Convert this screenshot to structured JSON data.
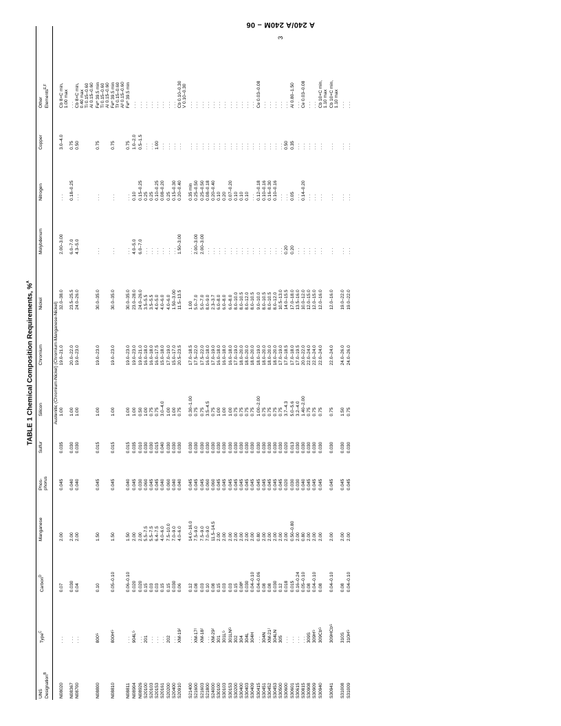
{
  "doc_header": "A 240/A 240M – 06",
  "page_number_rotated": "3",
  "title": "TABLE 1 Chemical Composition Requirements, %",
  "title_sup": "A",
  "columns": [
    {
      "key": "uns",
      "label": "UNS\nDesignation",
      "sup": "B"
    },
    {
      "key": "type",
      "label": "Type",
      "sup": "C"
    },
    {
      "key": "c",
      "label": "Carbon",
      "sup": "D"
    },
    {
      "key": "mn",
      "label": "Manganese",
      "sup": ""
    },
    {
      "key": "p",
      "label": "Phos-\nphorus",
      "sup": ""
    },
    {
      "key": "s",
      "label": "Sulfur",
      "sup": ""
    },
    {
      "key": "si",
      "label": "Silicon",
      "sup": ""
    },
    {
      "key": "cr",
      "label": "Chromium",
      "sup": ""
    },
    {
      "key": "ni",
      "label": "Nickel",
      "sup": ""
    },
    {
      "key": "mo",
      "label": "Molybdenum",
      "sup": ""
    },
    {
      "key": "n",
      "label": "Nitrogen",
      "sup": ""
    },
    {
      "key": "cu",
      "label": "Copper",
      "sup": ""
    },
    {
      "key": "oth",
      "label": "Other\nElements",
      "sup": "E,F"
    }
  ],
  "section_label": "Austenitic (Chromium-Nickel) (Chromium-Manganese-Nickel)",
  "rows": [
    {
      "uns": "N08020",
      "type": ". . .",
      "c": "0.07",
      "mn": "2.00",
      "p": "0.045",
      "s": "0.035",
      "si": "1.00",
      "cr": "19.0–21.0",
      "ni": "32.0–38.0",
      "mo": "2.00–3.00",
      "n": ". . .",
      "cu": "3.0–4.0",
      "oth": "Cb 8×C min,\n1.00 max"
    },
    {
      "uns": "N08367",
      "type": ". . .",
      "c": "0.030",
      "mn": "2.00",
      "p": "0.040",
      "s": "0.030",
      "si": "1.00",
      "cr": "20.0–22.0",
      "ni": "23.5–25.5",
      "mo": "6.0–7.0",
      "n": "0.18–0.25",
      "cu": "0.75",
      "oth": ". . ."
    },
    {
      "uns": "N08700",
      "type": ". . .",
      "c": "0.04",
      "mn": "2.00",
      "p": "0.040",
      "s": "0.030",
      "si": "1.00",
      "cr": "19.0–23.0",
      "ni": "24.0–26.0",
      "mo": "4.3–5.0",
      "n": ". . .",
      "cu": "0.50",
      "oth": "Cb 8×C min,\n0.40 max\nTi 0.15–0.60\nAl 0.15–0.60"
    },
    {
      "uns": "N08800",
      "type": "800ᴳ",
      "c": "0.10",
      "mn": "1.50",
      "p": "0.045",
      "s": "0.015",
      "si": "1.00",
      "cr": "19.0–23.0",
      "ni": "30.0–35.0",
      "mo": ". . .",
      "n": ". . .",
      "cu": "0.75",
      "oth": "Feᴴ 39.5 min\nTi 0.15–0.60\nAl 0.15–0.60"
    },
    {
      "uns": "N08810",
      "type": "800Hᴳ",
      "c": "0.05–0.10",
      "mn": "1.50",
      "p": "0.045",
      "s": "0.015",
      "si": "1.00",
      "cr": "19.0–23.0",
      "ni": "30.0–35.0",
      "mo": ". . .",
      "n": ". . .",
      "cu": "0.75",
      "oth": "Feᴴ 39.5 min\nTiᴵ 0.15–0.60\nAlᴵ 0.15–0.60"
    },
    {
      "uns": "N08811",
      "type": ". . .",
      "c": "0.06–0.10",
      "mn": "1.50",
      "p": "0.040",
      "s": "0.015",
      "si": "1.00",
      "cr": "19.0–23.0",
      "ni": "30.0–35.0",
      "mo": ". . .",
      "n": ". . .",
      "cu": "0.75",
      "oth": "Feᴴ 39.5 min"
    },
    {
      "uns": "",
      "type": "",
      "c": "",
      "mn": "",
      "p": "",
      "s": "",
      "si": "",
      "cr": "",
      "ni": "",
      "mo": "",
      "n": "",
      "cu": "",
      "oth": ""
    },
    {
      "uns": "N08904",
      "type": "904Lᴳ",
      "c": "0.020",
      "mn": "2.00",
      "p": "0.045",
      "s": "0.035",
      "si": "1.00",
      "cr": "19.0–23.0",
      "ni": "23.0–28.0",
      "mo": "4.0–5.0",
      "n": "0.10",
      "cu": "1.0–2.0",
      "oth": ". . ."
    },
    {
      "uns": "N08926",
      "type": ". . .",
      "c": "0.020",
      "mn": "2.00",
      "p": "0.030",
      "s": "0.010",
      "si": "0.50",
      "cr": "19.0–21.0",
      "ni": "24.0–26.0",
      "mo": "6.0–7.0",
      "n": "0.15–0.25",
      "cu": "0.5–1.5",
      "oth": ". . ."
    },
    {
      "uns": "S20100",
      "type": "201",
      "c": "0.15",
      "mn": "5.5–7.5",
      "p": "0.060",
      "s": "0.030",
      "si": "1.00",
      "cr": "16.0–18.0",
      "ni": "3.5–5.5",
      "mo": ". . .",
      "n": "0.25",
      "cu": ". . .",
      "oth": ". . ."
    },
    {
      "uns": "S20103",
      "type": ". . .",
      "c": "0.03",
      "mn": "5.5–7.5",
      "p": "0.045",
      "s": "0.030",
      "si": "0.75",
      "cr": "16.0–18.0",
      "ni": "3.5–5.5",
      "mo": ". . .",
      "n": "0.25",
      "cu": ". . .",
      "oth": ". . ."
    },
    {
      "uns": "S20153",
      "type": ". . .",
      "c": "0.03",
      "mn": "6.4–7.5",
      "p": "0.045",
      "s": "0.015",
      "si": "0.75",
      "cr": "16.0–17.5",
      "ni": "4.0–5.0",
      "mo": ". . .",
      "n": "0.10–0.25",
      "cu": "1.00",
      "oth": ". . ."
    },
    {
      "uns": "S20161",
      "type": ". . .",
      "c": "0.15",
      "mn": "4.0–6.0",
      "p": "0.040",
      "s": "0.040",
      "si": "3.0–4.0",
      "cr": "15.0–18.0",
      "ni": "4.0–6.0",
      "mo": ". . .",
      "n": "0.08–0.20",
      "cu": ". . .",
      "oth": ". . ."
    },
    {
      "uns": "S20200",
      "type": "202",
      "c": "0.15",
      "mn": "7.5–10.0",
      "p": "0.060",
      "s": "0.030",
      "si": "1.00",
      "cr": "17.0–19.0",
      "ni": "4.0–6.0",
      "mo": ". . .",
      "n": "0.25",
      "cu": ". . .",
      "oth": ". . ."
    },
    {
      "uns": "S20400",
      "type": ". . .",
      "c": "0.030",
      "mn": "7.0–9.0",
      "p": "0.040",
      "s": "0.030",
      "si": "1.00",
      "cr": "15.0–17.0",
      "ni": "1.50–3.00",
      "mo": ". . .",
      "n": "0.15–0.30",
      "cu": ". . .",
      "oth": ". . ."
    },
    {
      "uns": "S20910",
      "type": "XM-19ᴶ",
      "c": "0.06",
      "mn": "4.0–6.0",
      "p": "0.040",
      "s": "0.030",
      "si": "0.75",
      "cr": "20.5–23.5",
      "ni": "11.5–13.5",
      "mo": "1.50–3.00",
      "n": "0.20–0.40",
      "cu": ". . .",
      "oth": "Cb 0.10–0.30\nV 0.10–0.30"
    },
    {
      "uns": "",
      "type": "",
      "c": "",
      "mn": "",
      "p": "",
      "s": "",
      "si": "",
      "cr": "",
      "ni": "",
      "mo": "",
      "n": "",
      "cu": "",
      "oth": ""
    },
    {
      "uns": "S21400",
      "type": ". . .",
      "c": "0.12",
      "mn": "14.0–16.0",
      "p": "0.045",
      "s": "0.030",
      "si": "0.30–1.00",
      "cr": "17.0–18.5",
      "ni": "1.00",
      "mo": ". . .",
      "n": "0.35 min",
      "cu": ". . .",
      "oth": ". . ."
    },
    {
      "uns": "S21600",
      "type": "XM-17ᴶ",
      "c": "0.08",
      "mn": "7.5–9.0",
      "p": "0.045",
      "s": "0.030",
      "si": "0.75",
      "cr": "17.5–22.0",
      "ni": "5.0–7.0",
      "mo": "2.00–3.00",
      "n": "0.25–0.50",
      "cu": ". . .",
      "oth": ". . ."
    },
    {
      "uns": "S21603",
      "type": "XM-18ᴶ",
      "c": "0.03",
      "mn": "7.5–9.0",
      "p": "0.045",
      "s": "0.030",
      "si": "0.75",
      "cr": "17.5–22.0",
      "ni": "5.0–7.0",
      "mo": "2.00–3.00",
      "n": "0.25–0.50",
      "cu": ". . .",
      "oth": ". . ."
    },
    {
      "uns": "S21800",
      "type": ". . .",
      "c": "0.10",
      "mn": "7.0–9.0",
      "p": "0.060",
      "s": "0.030",
      "si": "3.5–4.5",
      "cr": "16.0–18.0",
      "ni": "8.0–9.0",
      "mo": ". . .",
      "n": "0.08–0.18",
      "cu": ". . .",
      "oth": ". . ."
    },
    {
      "uns": "S24000",
      "type": "XM-29ᴶ",
      "c": "0.08",
      "mn": "11.5–14.5",
      "p": "0.060",
      "s": "0.030",
      "si": "0.75",
      "cr": "17.0–19.0",
      "ni": "2.3–3.7",
      "mo": ". . .",
      "n": "0.20–0.40",
      "cu": ". . .",
      "oth": ". . ."
    },
    {
      "uns": "S30100",
      "type": "301",
      "c": "0.15",
      "mn": "2.00",
      "p": "0.045",
      "s": "0.030",
      "si": "1.00",
      "cr": "16.0–18.0",
      "ni": "6.0–8.0",
      "mo": ". . .",
      "n": "0.10",
      "cu": ". . .",
      "oth": ". . ."
    },
    {
      "uns": "S30103",
      "type": "301Lᴳ",
      "c": "0.03",
      "mn": "2.00",
      "p": "0.045",
      "s": "0.030",
      "si": "1.00",
      "cr": "16.0–18.0",
      "ni": "6.0–8.0",
      "mo": ". . .",
      "n": "0.20",
      "cu": ". . .",
      "oth": ". . ."
    },
    {
      "uns": "S30153",
      "type": "301LNᴳ",
      "c": "0.03",
      "mn": "2.00",
      "p": "0.045",
      "s": "0.030",
      "si": "1.00",
      "cr": "16.0–18.0",
      "ni": "6.0–8.0",
      "mo": ". . .",
      "n": "0.07–0.20",
      "cu": ". . .",
      "oth": ". . ."
    },
    {
      "uns": "S30200",
      "type": "302",
      "c": "0.15",
      "mn": "2.00",
      "p": "0.045",
      "s": "0.030",
      "si": "0.75",
      "cr": "17.0–19.0",
      "ni": "8.0–10.0",
      "mo": ". . .",
      "n": "0.10",
      "cu": ". . .",
      "oth": ". . ."
    },
    {
      "uns": "S30400",
      "type": "304",
      "c": "0.08ᴷ",
      "mn": "2.00",
      "p": "0.045",
      "s": "0.030",
      "si": "0.75",
      "cr": "18.0–20.0",
      "ni": "8.0–10.5",
      "mo": ". . .",
      "n": "0.10",
      "cu": ". . .",
      "oth": ". . ."
    },
    {
      "uns": "S30403",
      "type": "304L",
      "c": "0.030",
      "mn": "2.00",
      "p": "0.045",
      "s": "0.030",
      "si": "0.75",
      "cr": "18.0–20.0",
      "ni": "8.0–12.0",
      "mo": ". . .",
      "n": "0.10",
      "cu": ". . .",
      "oth": ". . ."
    },
    {
      "uns": "S30409",
      "type": "304H",
      "c": "0.04–0.10",
      "mn": "2.00",
      "p": "0.045",
      "s": "0.030",
      "si": "0.75",
      "cr": "18.0–20.0",
      "ni": "8.0–10.5",
      "mo": ". . .",
      "n": ". . .",
      "cu": ". . .",
      "oth": ". . ."
    },
    {
      "uns": "S30415",
      "type": ". . .",
      "c": "0.04–0.06",
      "mn": "0.80",
      "p": "0.045",
      "s": "0.030",
      "si": "1.00–2.00",
      "cr": "18.0–19.0",
      "ni": "9.0–10.0",
      "mo": ". . .",
      "n": "0.12–0.18",
      "cu": ". . .",
      "oth": "Ce 0.03–0.08"
    },
    {
      "uns": "S30451",
      "type": "304N",
      "c": "0.08",
      "mn": "2.00",
      "p": "0.045",
      "s": "0.030",
      "si": "0.75",
      "cr": "18.0–20.0",
      "ni": "8.0–10.5",
      "mo": ". . .",
      "n": "0.10–0.16",
      "cu": ". . .",
      "oth": ". . ."
    },
    {
      "uns": "S30452",
      "type": "XM-21ᴶ",
      "c": "0.08",
      "mn": "2.00",
      "p": "0.045",
      "s": "0.030",
      "si": "0.75",
      "cr": "18.0–20.0",
      "ni": "8.0–10.5",
      "mo": ". . .",
      "n": "0.16–0.30",
      "cu": ". . .",
      "oth": ". . ."
    },
    {
      "uns": "S30453",
      "type": "304LN",
      "c": "0.030",
      "mn": "2.00",
      "p": "0.045",
      "s": "0.030",
      "si": "0.75",
      "cr": "18.0–20.0",
      "ni": "8.0–12.0",
      "mo": ". . .",
      "n": "0.10–0.16",
      "cu": ". . .",
      "oth": ". . ."
    },
    {
      "uns": "S30500",
      "type": "305",
      "c": "0.12",
      "mn": "2.00",
      "p": "0.045",
      "s": "0.030",
      "si": "0.75",
      "cr": "17.0–19.0",
      "ni": "10.5–13.0",
      "mo": ". . .",
      "n": ". . .",
      "cu": ". . .",
      "oth": ". . ."
    },
    {
      "uns": "S30600",
      "type": ". . .",
      "c": "0.018",
      "mn": "2.00",
      "p": "0.020",
      "s": "0.020",
      "si": "3.7–4.3",
      "cr": "17.0–18.5",
      "ni": "14.0–15.5",
      "mo": "0.20",
      "n": ". . .",
      "cu": "0.50",
      "oth": ". . ."
    },
    {
      "uns": "S30601",
      "type": ". . .",
      "c": "0.015",
      "mn": "0.50–0.80",
      "p": "0.030",
      "s": "0.013",
      "si": "5.0–5.6",
      "cr": "17.0–18.0",
      "ni": "17.0–18.0",
      "mo": "0.20",
      "n": "0.05",
      "cu": "0.35",
      "oth": "Al 0.80–1.50"
    },
    {
      "uns": "S30615",
      "type": ". . .",
      "c": "0.16–0.24",
      "mn": "2.00",
      "p": "0.030",
      "s": "0.030",
      "si": "3.2–4.0",
      "cr": "17.0–19.5",
      "ni": "13.5–16.0",
      "mo": ". . .",
      "n": ". . .",
      "cu": ". . .",
      "oth": ". . ."
    },
    {
      "uns": "S30815",
      "type": ". . .",
      "c": "0.05–0.10",
      "mn": "0.80",
      "p": "0.040",
      "s": "0.030",
      "si": "1.40–2.00",
      "cr": "20.0–22.0",
      "ni": "10.0–12.0",
      "mo": ". . .",
      "n": "0.14–0.20",
      "cu": ". . .",
      "oth": "Ce 0.03–0.08"
    },
    {
      "uns": "S30908",
      "type": "309S",
      "c": "0.08",
      "mn": "2.00",
      "p": "0.045",
      "s": "0.030",
      "si": "0.75",
      "cr": "22.0–24.0",
      "ni": "12.0–15.0",
      "mo": ". . .",
      "n": ". . .",
      "cu": ". . .",
      "oth": ". . ."
    },
    {
      "uns": "S30909",
      "type": "309Hᴳ",
      "c": "0.04–0.10",
      "mn": "2.00",
      "p": "0.045",
      "s": "0.030",
      "si": "0.75",
      "cr": "22.0–24.0",
      "ni": "12.0–15.0",
      "mo": ". . .",
      "n": ". . .",
      "cu": ". . .",
      "oth": ". . ."
    },
    {
      "uns": "S30940",
      "type": "309Cbᴳ",
      "c": "0.08",
      "mn": "2.00",
      "p": "0.045",
      "s": "0.030",
      "si": "0.75",
      "cr": "22.0–24.0",
      "ni": "12.0–16.0",
      "mo": ". . .",
      "n": ". . .",
      "cu": ". . .",
      "oth": "Cb 10×C min,\n1.10 max"
    },
    {
      "uns": "",
      "type": "",
      "c": "",
      "mn": "",
      "p": "",
      "s": "",
      "si": "",
      "cr": "",
      "ni": "",
      "mo": "",
      "n": "",
      "cu": "",
      "oth": ""
    },
    {
      "uns": "S30941",
      "type": "309HCbᴳ",
      "c": "0.04–0.10",
      "mn": "2.00",
      "p": "0.045",
      "s": "0.030",
      "si": "0.75",
      "cr": "22.0–24.0",
      "ni": "12.0–16.0",
      "mo": ". . .",
      "n": ". . .",
      "cu": ". . .",
      "oth": "Cb 10×C min,\n1.10 max"
    },
    {
      "uns": "",
      "type": "",
      "c": "",
      "mn": "",
      "p": "",
      "s": "",
      "si": "",
      "cr": "",
      "ni": "",
      "mo": "",
      "n": "",
      "cu": "",
      "oth": ""
    },
    {
      "uns": "S31008",
      "type": "310S",
      "c": "0.08",
      "mn": "2.00",
      "p": "0.045",
      "s": "0.030",
      "si": "1.50",
      "cr": "24.0–26.0",
      "ni": "19.0–22.0",
      "mo": ". . .",
      "n": ". . .",
      "cu": ". . .",
      "oth": ". . ."
    },
    {
      "uns": "S31009",
      "type": "310Hᴳ",
      "c": "0.04–0.10",
      "mn": "2.00",
      "p": "0.045",
      "s": "0.030",
      "si": "0.75",
      "cr": "24.0–26.0",
      "ni": "19.0–22.0",
      "mo": ". . .",
      "n": ". . .",
      "cu": ". . .",
      "oth": ". . ."
    }
  ]
}
